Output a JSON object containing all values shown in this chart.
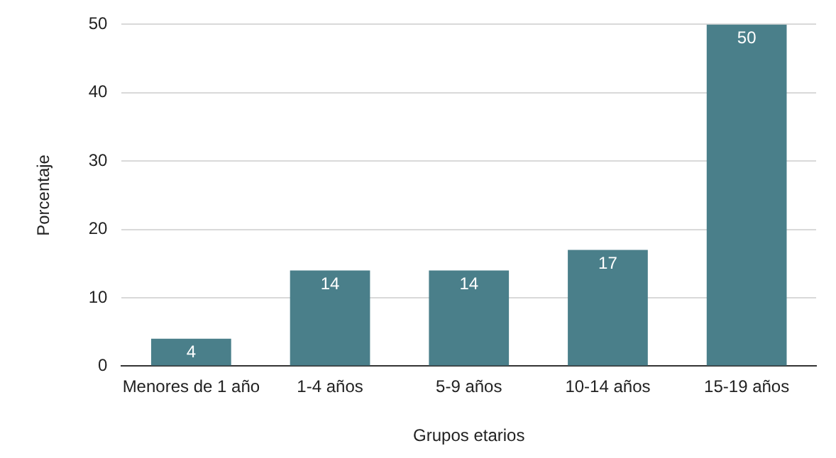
{
  "chart_data": {
    "type": "bar",
    "xlabel": "Grupos etarios",
    "ylabel": "Porcentaje",
    "categories": [
      "Menores de 1 año",
      "1-4 años",
      "5-9 años",
      "10-14 años",
      "15-19 años"
    ],
    "values": [
      4,
      14,
      14,
      17,
      50
    ],
    "color": "#4a7f8a",
    "ylim": [
      0,
      50
    ],
    "yticks": [
      0,
      10,
      20,
      30,
      40,
      50
    ],
    "grid": "y",
    "data_labels": true
  }
}
